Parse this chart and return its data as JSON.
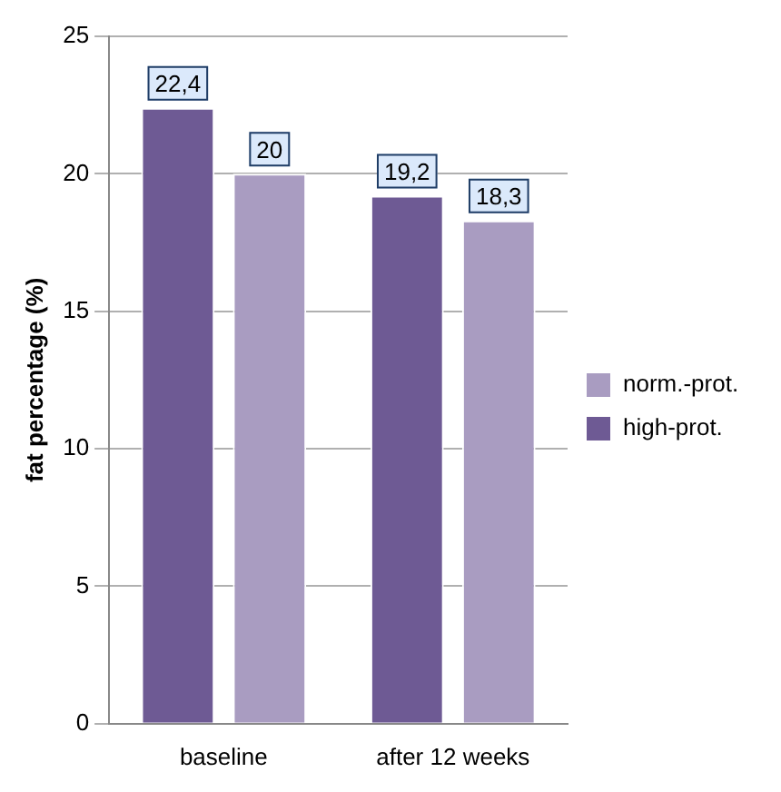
{
  "chart_data": {
    "type": "bar",
    "ylabel": "fat percentage (%)",
    "categories": [
      "baseline",
      "after 12 weeks"
    ],
    "series": [
      {
        "name": "high-prot.",
        "color": "#6e5a94",
        "values": [
          22.4,
          19.2
        ],
        "value_labels": [
          "22,4",
          "19,2"
        ]
      },
      {
        "name": "norm.-prot.",
        "color": "#a99cc1",
        "values": [
          20,
          18.3
        ],
        "value_labels": [
          "20",
          "18,3"
        ]
      }
    ],
    "ylim": [
      0,
      25
    ],
    "yticks": [
      0,
      5,
      10,
      15,
      20,
      25
    ],
    "grid": "y",
    "legend": "right"
  }
}
